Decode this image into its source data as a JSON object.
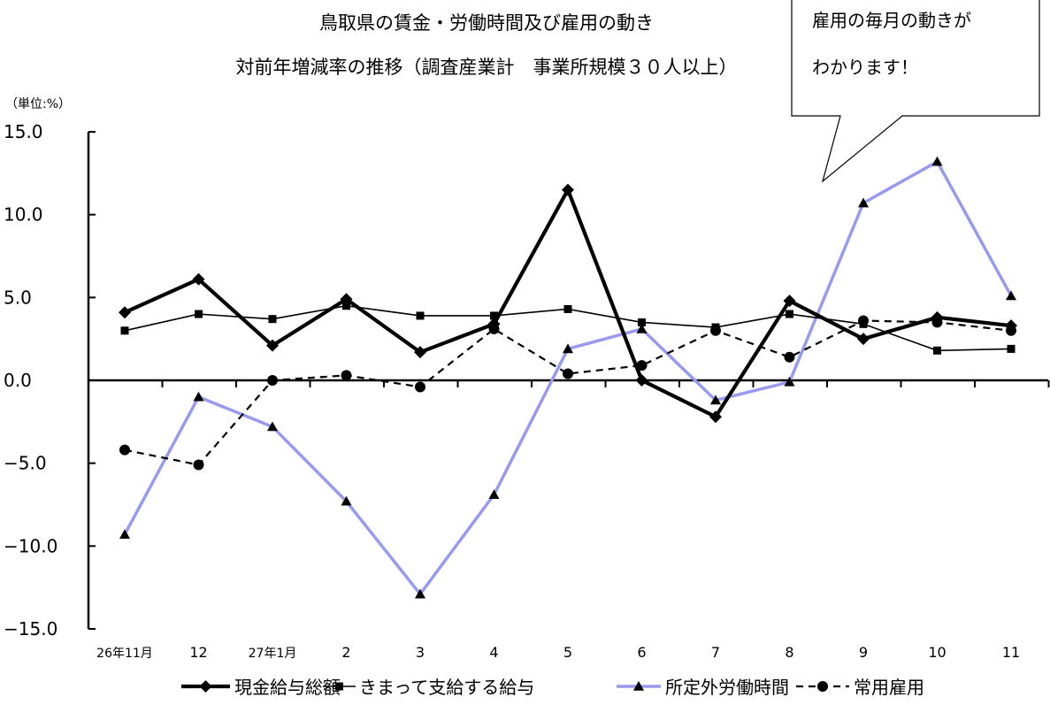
{
  "chart_data": {
    "type": "line",
    "title": "鳥取県の賃金・労働時間及び雇用の動き",
    "subtitle": "対前年増減率の推移（調査産業計　事業所規模３０人以上）",
    "unit_label": "（単位:%）",
    "ylim": [
      -15,
      15
    ],
    "yticks": [
      "15.0",
      "10.0",
      "5.0",
      "0.0",
      "−5.0",
      "−10.0",
      "−15.0"
    ],
    "categories": [
      "26年11月",
      "12",
      "27年1月",
      "2",
      "3",
      "4",
      "5",
      "6",
      "7",
      "8",
      "9",
      "10",
      "11"
    ],
    "series": [
      {
        "name": "現金給与総額",
        "values": [
          4.1,
          6.1,
          2.1,
          4.9,
          1.7,
          3.4,
          11.5,
          0.0,
          -2.2,
          4.8,
          2.5,
          3.8,
          3.3
        ],
        "color": "#000000",
        "marker": "diamond",
        "dash": "none"
      },
      {
        "name": "きまって支給する給与",
        "values": [
          3.0,
          4.0,
          3.7,
          4.5,
          3.9,
          3.9,
          4.3,
          3.5,
          3.2,
          4.0,
          3.4,
          1.8,
          1.9
        ],
        "color": "#000000",
        "marker": "square",
        "dash": "none"
      },
      {
        "name": "所定外労働時間",
        "values": [
          -9.3,
          -1.0,
          -2.8,
          -7.3,
          -12.9,
          -6.9,
          1.9,
          3.1,
          -1.2,
          -0.1,
          10.7,
          13.2,
          5.1
        ],
        "color": "#9999ee",
        "marker": "triangle",
        "dash": "none"
      },
      {
        "name": "常用雇用",
        "values": [
          -4.2,
          -5.1,
          0.0,
          0.3,
          -0.4,
          3.1,
          0.4,
          0.9,
          3.0,
          1.4,
          3.6,
          3.5,
          3.0
        ],
        "color": "#000000",
        "marker": "circle",
        "dash": "dashed"
      }
    ],
    "grid": false,
    "legend_position": "bottom"
  },
  "callout": {
    "line1": "雇用の毎月の動きが",
    "line2": "わかります！"
  }
}
